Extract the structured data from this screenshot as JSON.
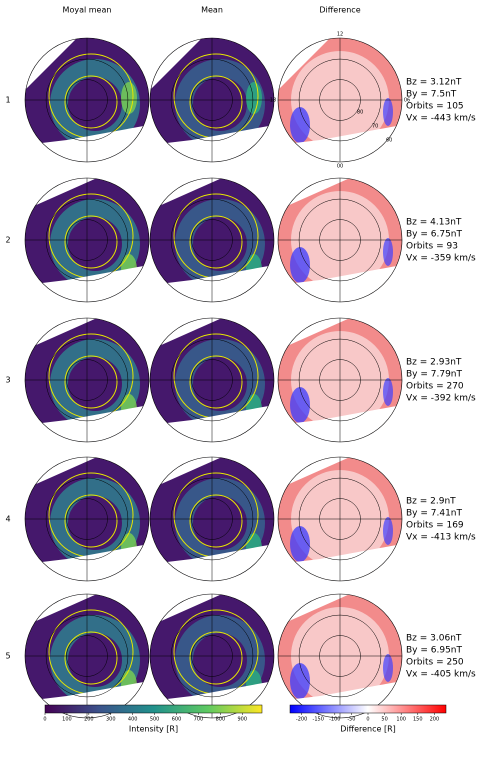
{
  "columns": [
    "Moyal mean",
    "Mean",
    "Difference"
  ],
  "rows": [
    {
      "label": "1",
      "bz": "Bz = 3.12nT",
      "by": "By = 7.5nT",
      "orbits": "Orbits = 105",
      "vx": "Vx = -443 km/s"
    },
    {
      "label": "2",
      "bz": "Bz = 4.13nT",
      "by": "By = 6.75nT",
      "orbits": "Orbits = 93",
      "vx": "Vx = -359 km/s"
    },
    {
      "label": "3",
      "bz": "Bz = 2.93nT",
      "by": "By = 7.79nT",
      "orbits": "Orbits = 270",
      "vx": "Vx = -392 km/s"
    },
    {
      "label": "4",
      "bz": "Bz = 2.9nT",
      "by": "By = 7.41nT",
      "orbits": "Orbits = 169",
      "vx": "Vx = -413 km/s"
    },
    {
      "label": "5",
      "bz": "Bz = 3.06nT",
      "by": "By = 6.95nT",
      "orbits": "Orbits = 250",
      "vx": "Vx = -405 km/s"
    }
  ],
  "polar_labels": {
    "top": "12",
    "left": "18",
    "right": "06",
    "bottom": "00",
    "r80": "80",
    "r70": "70",
    "r60": "60"
  },
  "colorbars": [
    {
      "label": "Intensity [R]",
      "lim": [
        0,
        990
      ],
      "ticks": [
        0,
        100,
        200,
        300,
        400,
        500,
        600,
        700,
        800,
        900
      ]
    },
    {
      "label": "Difference [R]",
      "lim": [
        -235,
        235
      ],
      "ticks": [
        -200,
        -150,
        -100,
        -50,
        0,
        50,
        100,
        150,
        200
      ]
    }
  ]
}
